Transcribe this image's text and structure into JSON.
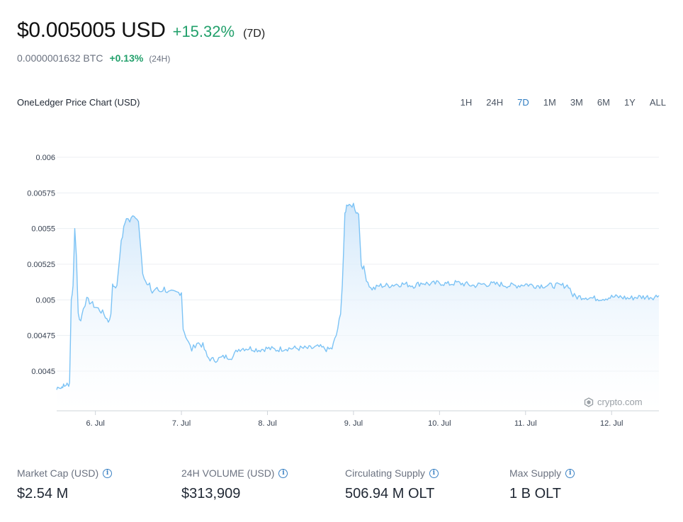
{
  "header": {
    "price": "$0.005005 USD",
    "change": "+15.32%",
    "period": "(7D)",
    "btc_price": "0.0000001632 BTC",
    "btc_change": "+0.13%",
    "btc_period": "(24H)"
  },
  "chart": {
    "title": "OneLedger Price Chart (USD)",
    "ranges": [
      "1H",
      "24H",
      "7D",
      "1M",
      "3M",
      "6M",
      "1Y",
      "ALL"
    ],
    "active_range": "7D",
    "watermark": "crypto.com"
  },
  "chart_data": {
    "type": "area",
    "title": "OneLedger Price Chart (USD)",
    "xlabel": "",
    "ylabel": "",
    "x_tick_labels": [
      "6. Jul",
      "7. Jul",
      "8. Jul",
      "9. Jul",
      "10. Jul",
      "11. Jul",
      "12. Jul"
    ],
    "y_tick_labels": [
      "0.0045",
      "0.00475",
      "0.005",
      "0.00525",
      "0.0055",
      "0.00575",
      "0.006"
    ],
    "ylim": [
      0.0043,
      0.006
    ],
    "xlim": [
      5.55,
      12.55
    ],
    "grid": true,
    "x": [
      5.55,
      5.57,
      5.6,
      5.62,
      5.64,
      5.66,
      5.68,
      5.7,
      5.72,
      5.74,
      5.76,
      5.78,
      5.8,
      5.83,
      5.86,
      5.9,
      5.95,
      6.0,
      6.05,
      6.1,
      6.15,
      6.18,
      6.2,
      6.22,
      6.25,
      6.3,
      6.33,
      6.36,
      6.4,
      6.45,
      6.5,
      6.55,
      6.6,
      6.63,
      6.66,
      6.7,
      6.75,
      6.8,
      6.85,
      6.9,
      6.95,
      7.0,
      7.02,
      7.05,
      7.08,
      7.12,
      7.18,
      7.25,
      7.3,
      7.35,
      7.4,
      7.5,
      7.6,
      7.65,
      7.7,
      7.8,
      7.9,
      8.0,
      8.1,
      8.2,
      8.3,
      8.4,
      8.5,
      8.6,
      8.7,
      8.75,
      8.8,
      8.85,
      8.87,
      8.9,
      8.92,
      8.95,
      9.0,
      9.03,
      9.06,
      9.09,
      9.12,
      9.15,
      9.2,
      9.25,
      9.3,
      9.4,
      9.5,
      9.6,
      9.7,
      9.8,
      9.9,
      10.0,
      10.1,
      10.2,
      10.3,
      10.4,
      10.5,
      10.6,
      10.7,
      10.8,
      10.9,
      11.0,
      11.1,
      11.2,
      11.3,
      11.4,
      11.5,
      11.55,
      11.6,
      11.7,
      11.8,
      11.9,
      12.0,
      12.1,
      12.2,
      12.3,
      12.4,
      12.5,
      12.55
    ],
    "series": [
      {
        "values": [
          0.00437,
          0.0044,
          0.00438,
          0.0044,
          0.00439,
          0.00441,
          0.0044,
          0.00442,
          0.005,
          0.0051,
          0.0055,
          0.0053,
          0.0049,
          0.00485,
          0.00495,
          0.005,
          0.00498,
          0.00495,
          0.00493,
          0.0049,
          0.00485,
          0.0049,
          0.0051,
          0.0051,
          0.0051,
          0.0054,
          0.0055,
          0.00558,
          0.00555,
          0.0056,
          0.00555,
          0.0052,
          0.0051,
          0.0051,
          0.00505,
          0.00508,
          0.00506,
          0.00508,
          0.00505,
          0.00505,
          0.00505,
          0.00505,
          0.0048,
          0.00475,
          0.0047,
          0.00465,
          0.0047,
          0.00468,
          0.0046,
          0.00458,
          0.00458,
          0.0046,
          0.0046,
          0.00465,
          0.00466,
          0.00466,
          0.00465,
          0.00466,
          0.00465,
          0.00466,
          0.00466,
          0.00466,
          0.00466,
          0.00467,
          0.00465,
          0.00466,
          0.00475,
          0.0049,
          0.0051,
          0.0056,
          0.00567,
          0.00565,
          0.00567,
          0.00562,
          0.0056,
          0.00525,
          0.00522,
          0.00515,
          0.00508,
          0.00508,
          0.0051,
          0.0051,
          0.00511,
          0.00511,
          0.0051,
          0.00512,
          0.00511,
          0.00512,
          0.00511,
          0.00512,
          0.00511,
          0.0051,
          0.00511,
          0.00511,
          0.00511,
          0.0051,
          0.0051,
          0.00511,
          0.0051,
          0.0051,
          0.0051,
          0.0051,
          0.0051,
          0.00503,
          0.00502,
          0.00502,
          0.00501,
          0.00501,
          0.00502,
          0.00502,
          0.00501,
          0.00502,
          0.00502,
          0.00502,
          0.00503
        ]
      }
    ],
    "line_color": "#7cc3f5",
    "fill_color": "#d6ebfb"
  },
  "stats": [
    {
      "label": "Market Cap (USD)",
      "value": "$2.54 M"
    },
    {
      "label": "24H VOLUME (USD)",
      "value": "$313,909"
    },
    {
      "label": "Circulating Supply",
      "value": "506.94 M OLT"
    },
    {
      "label": "Max Supply",
      "value": "1 B OLT"
    }
  ],
  "icons": {
    "info": "info-circle-icon",
    "watermark": "crypto-logo-icon"
  },
  "colors": {
    "positive": "#22a06b",
    "active_range": "#2f7cc1",
    "info": "#3b82c4"
  }
}
